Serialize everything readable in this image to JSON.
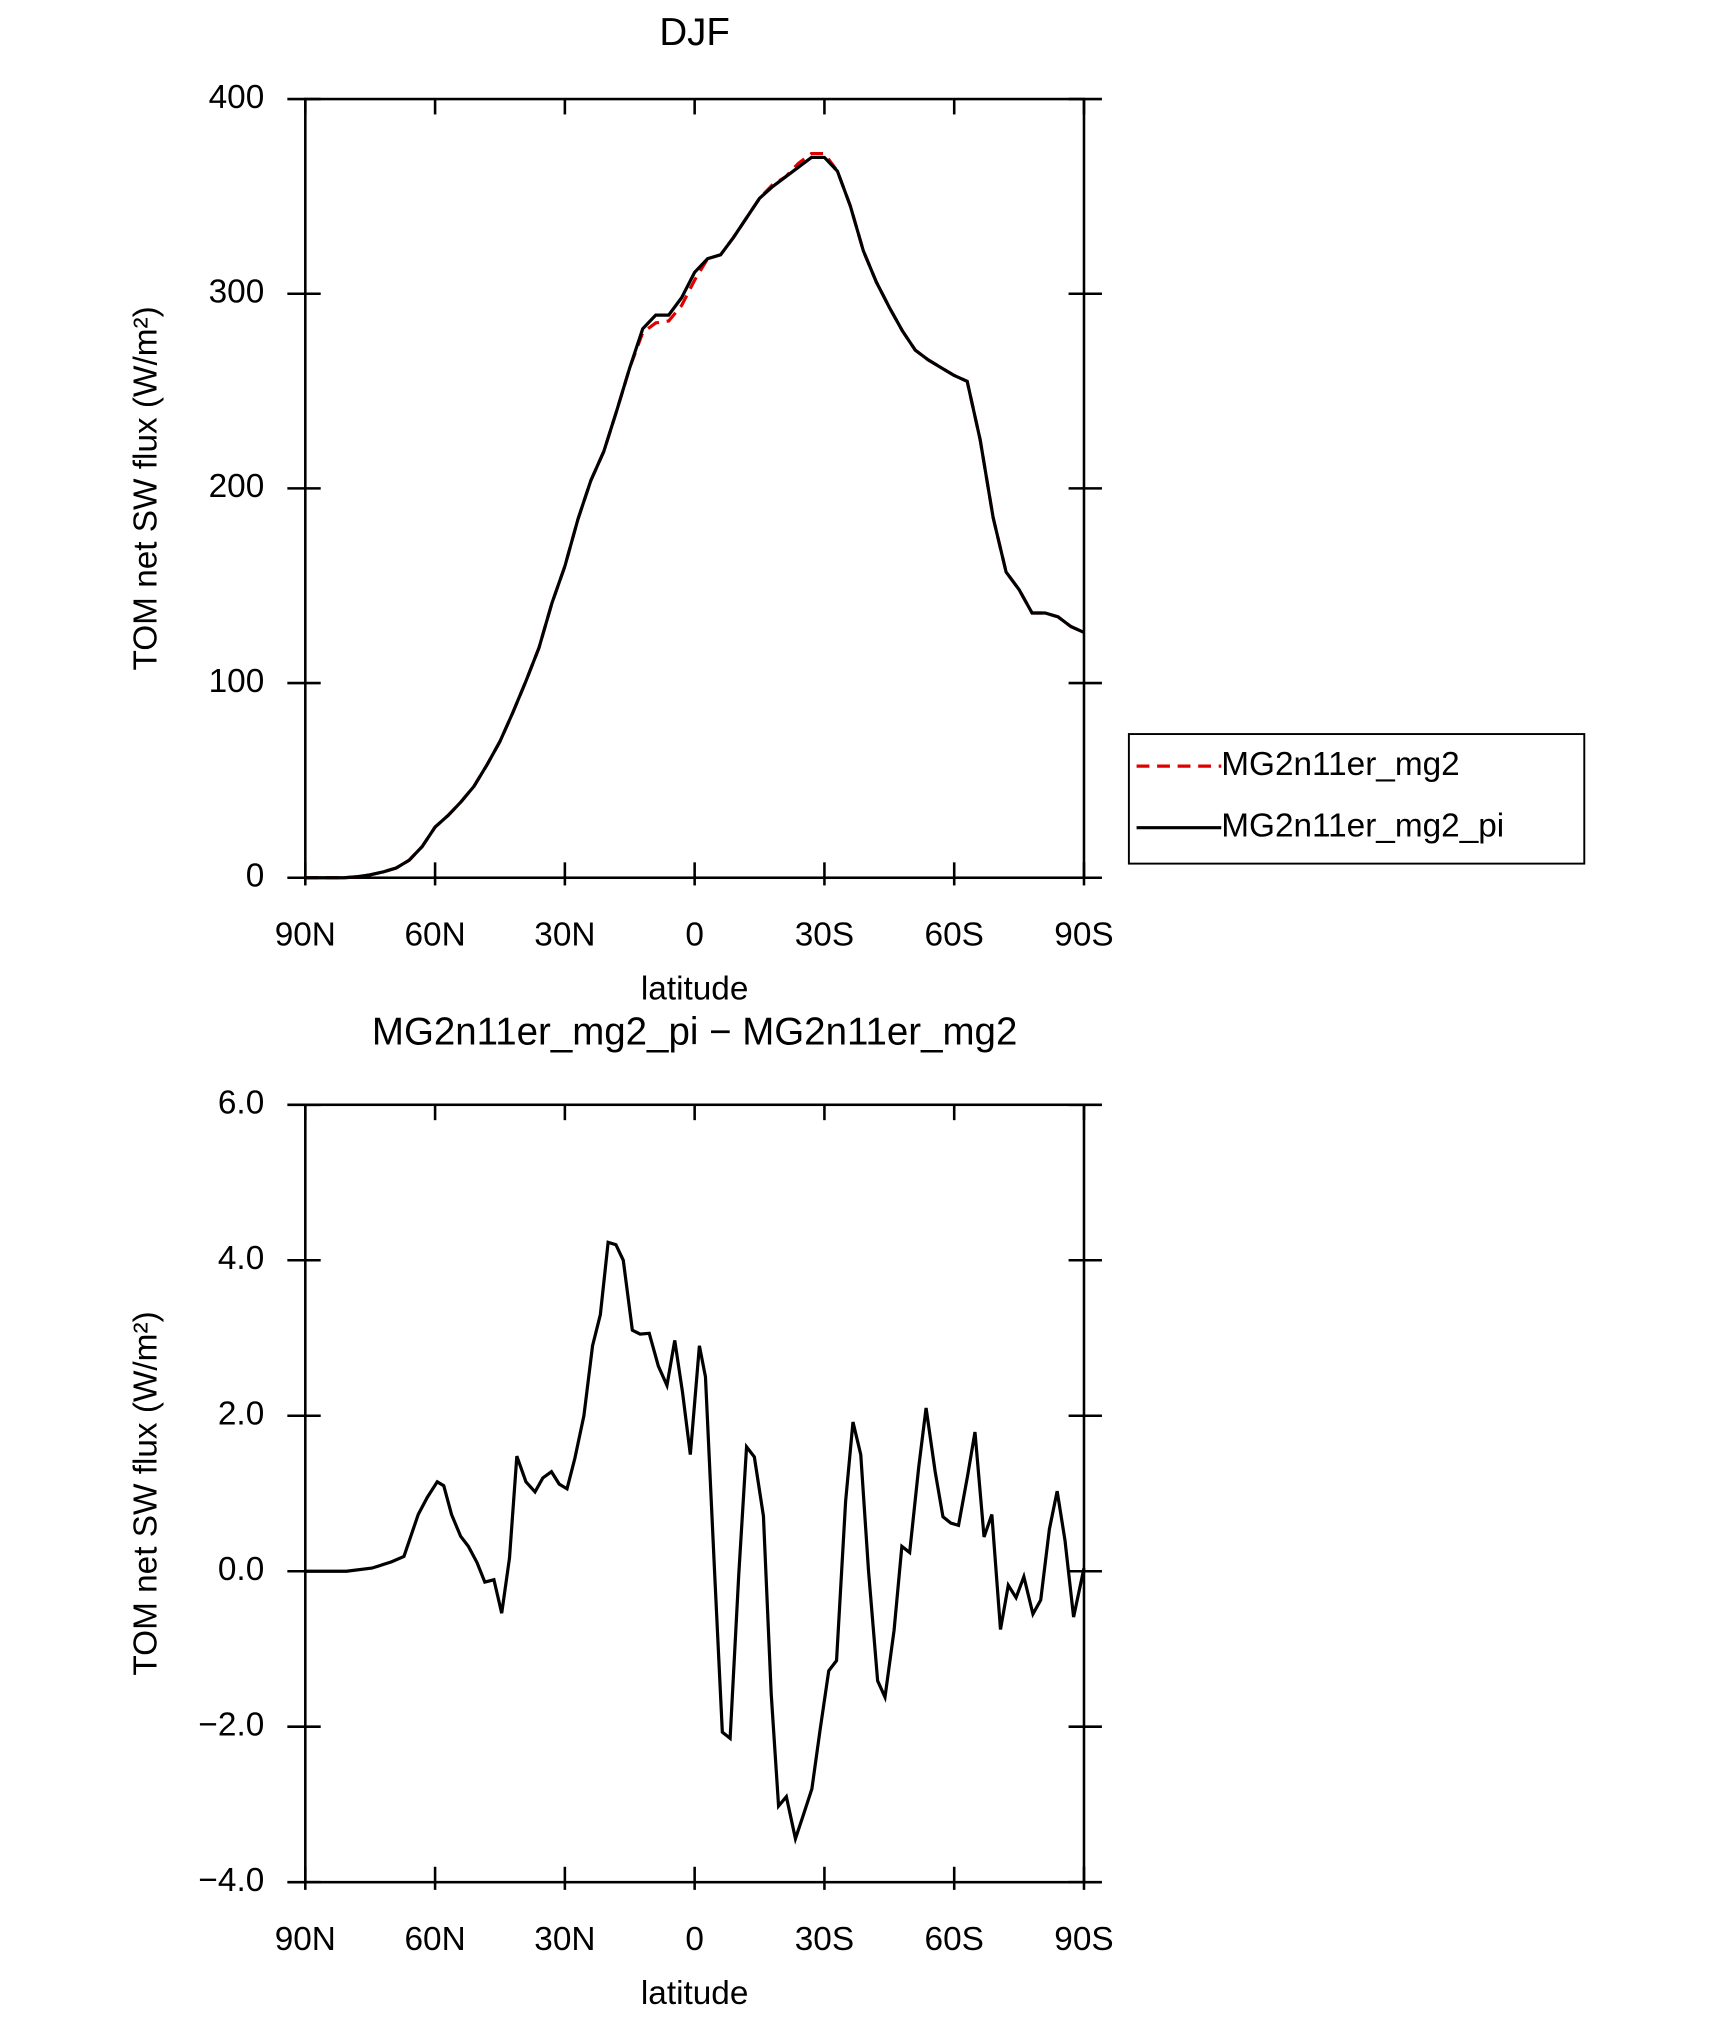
{
  "chart_data": [
    {
      "type": "line",
      "title": "DJF",
      "xlabel": "latitude",
      "ylabel": "TOM net SW flux (W/m²)",
      "xlim": [
        90,
        -90
      ],
      "xticks": [
        {
          "value": 90,
          "label": "90N"
        },
        {
          "value": 60,
          "label": "60N"
        },
        {
          "value": 30,
          "label": "30N"
        },
        0,
        {
          "value": -30,
          "label": "30S"
        },
        {
          "value": -60,
          "label": "60S"
        },
        {
          "value": -90,
          "label": "90S"
        }
      ],
      "ylim": [
        0,
        400
      ],
      "yticks": [
        0,
        100,
        200,
        300,
        400
      ],
      "legend": true,
      "x": [
        90,
        87,
        84,
        81,
        78,
        75,
        72,
        69,
        66,
        63,
        60,
        57,
        54,
        51,
        48,
        45,
        42,
        39,
        36,
        33,
        30,
        27,
        24,
        21,
        18,
        15,
        12,
        9,
        6,
        3,
        0,
        -3,
        -6,
        -9,
        -12,
        -15,
        -18,
        -21,
        -24,
        -27,
        -30,
        -33,
        -36,
        -39,
        -42,
        -45,
        -48,
        -51,
        -54,
        -57,
        -60,
        -63,
        -66,
        -69,
        -72,
        -75,
        -78,
        -81,
        -84,
        -87,
        -90
      ],
      "series": [
        {
          "name": "MG2n11er_mg2",
          "color": "#e00000",
          "dashed": true,
          "values": [
            0,
            0,
            0,
            0,
            0.5,
            1.5,
            3,
            5,
            9,
            16,
            26,
            32,
            39,
            47,
            58,
            70,
            85,
            101,
            118,
            141,
            160,
            184,
            204,
            219,
            240,
            262,
            280,
            285,
            286,
            294,
            307,
            318,
            320,
            329,
            339,
            349,
            356,
            360,
            367,
            372,
            372,
            363,
            345,
            322,
            306,
            293,
            281,
            271,
            266,
            262,
            258,
            255,
            225,
            185,
            157,
            148,
            136,
            136,
            134,
            129,
            126
          ]
        },
        {
          "name": "MG2n11er_mg2_pi",
          "color": "#000000",
          "dashed": false,
          "values": [
            0,
            0,
            0,
            0,
            0.5,
            1.5,
            3,
            5,
            9,
            16,
            26,
            32,
            39,
            47,
            58,
            70,
            85,
            101,
            118,
            141,
            160,
            184,
            204,
            219,
            240,
            262,
            282,
            289,
            289,
            298,
            311,
            318,
            320,
            329,
            339,
            349,
            355,
            360,
            365,
            370,
            370,
            363,
            345,
            322,
            306,
            293,
            281,
            271,
            266,
            262,
            258,
            255,
            225,
            185,
            157,
            148,
            136,
            136,
            134,
            129,
            126
          ]
        }
      ]
    },
    {
      "type": "line",
      "title": "MG2n11er_mg2_pi − MG2n11er_mg2",
      "xlabel": "latitude",
      "ylabel": "TOM net SW flux (W/m²)",
      "xlim": [
        90,
        -90
      ],
      "xticks": [
        {
          "value": 90,
          "label": "90N"
        },
        {
          "value": 60,
          "label": "60N"
        },
        {
          "value": 30,
          "label": "30N"
        },
        0,
        {
          "value": -30,
          "label": "30S"
        },
        {
          "value": -60,
          "label": "60S"
        },
        {
          "value": -90,
          "label": "90S"
        }
      ],
      "ylim": [
        -4,
        6
      ],
      "yticks": [
        {
          "value": -4,
          "label": "−4.0"
        },
        {
          "value": -2,
          "label": "−2.0"
        },
        {
          "value": 0,
          "label": "0.0"
        },
        {
          "value": 2,
          "label": "2.0"
        },
        {
          "value": 4,
          "label": "4.0"
        },
        {
          "value": 6,
          "label": "6.0"
        }
      ],
      "legend": false,
      "x": [
        90,
        80.5,
        74.6,
        70.1,
        67.2,
        63.9,
        61.8,
        59.5,
        58.0,
        56.2,
        54.1,
        52.3,
        50.3,
        48.5,
        46.4,
        44.6,
        42.8,
        41.1,
        39.0,
        36.9,
        35.1,
        33.1,
        31.3,
        29.5,
        27.7,
        25.6,
        23.6,
        21.8,
        20.0,
        18.2,
        16.5,
        14.4,
        12.6,
        10.5,
        8.4,
        6.4,
        4.6,
        2.8,
        1.0,
        -1.1,
        -2.5,
        -4.6,
        -6.4,
        -8.2,
        -10.2,
        -12.0,
        -13.8,
        -15.9,
        -17.7,
        -19.4,
        -21.2,
        -23.3,
        -25.1,
        -27.1,
        -29.0,
        -31.0,
        -32.8,
        -34.9,
        -36.6,
        -38.4,
        -40.2,
        -42.3,
        -44.0,
        -46.1,
        -47.9,
        -49.7,
        -51.8,
        -53.5,
        -55.6,
        -57.4,
        -59.2,
        -61.0,
        -63.1,
        -64.8,
        -66.9,
        -68.7,
        -70.7,
        -72.5,
        -74.3,
        -76.1,
        -78.2,
        -80.0,
        -82.0,
        -83.8,
        -85.6,
        -87.6,
        -90
      ],
      "series": [
        {
          "name": null,
          "color": "#000000",
          "dashed": false,
          "values": [
            0,
            0,
            0.04,
            0.12,
            0.19,
            0.73,
            0.95,
            1.15,
            1.1,
            0.73,
            0.45,
            0.32,
            0.11,
            -0.14,
            -0.11,
            -0.54,
            0.17,
            1.48,
            1.15,
            1.02,
            1.2,
            1.28,
            1.12,
            1.06,
            1.45,
            2.0,
            2.9,
            3.3,
            4.23,
            4.2,
            4.0,
            3.1,
            3.05,
            3.06,
            2.64,
            2.39,
            2.97,
            2.3,
            1.5,
            2.9,
            2.5,
            0,
            -2.07,
            -2.15,
            -0.04,
            1.6,
            1.47,
            0.71,
            -1.58,
            -3.02,
            -2.9,
            -3.44,
            -3.14,
            -2.8,
            -2.04,
            -1.28,
            -1.15,
            0.9,
            1.92,
            1.5,
            0,
            -1.41,
            -1.62,
            -0.76,
            0.32,
            0.24,
            1.34,
            2.1,
            1.28,
            0.7,
            0.62,
            0.59,
            1.23,
            1.79,
            0.44,
            0.73,
            -0.75,
            -0.18,
            -0.34,
            -0.07,
            -0.55,
            -0.37,
            0.54,
            1.03,
            0.4,
            -0.59,
            0.04
          ]
        }
      ]
    }
  ]
}
